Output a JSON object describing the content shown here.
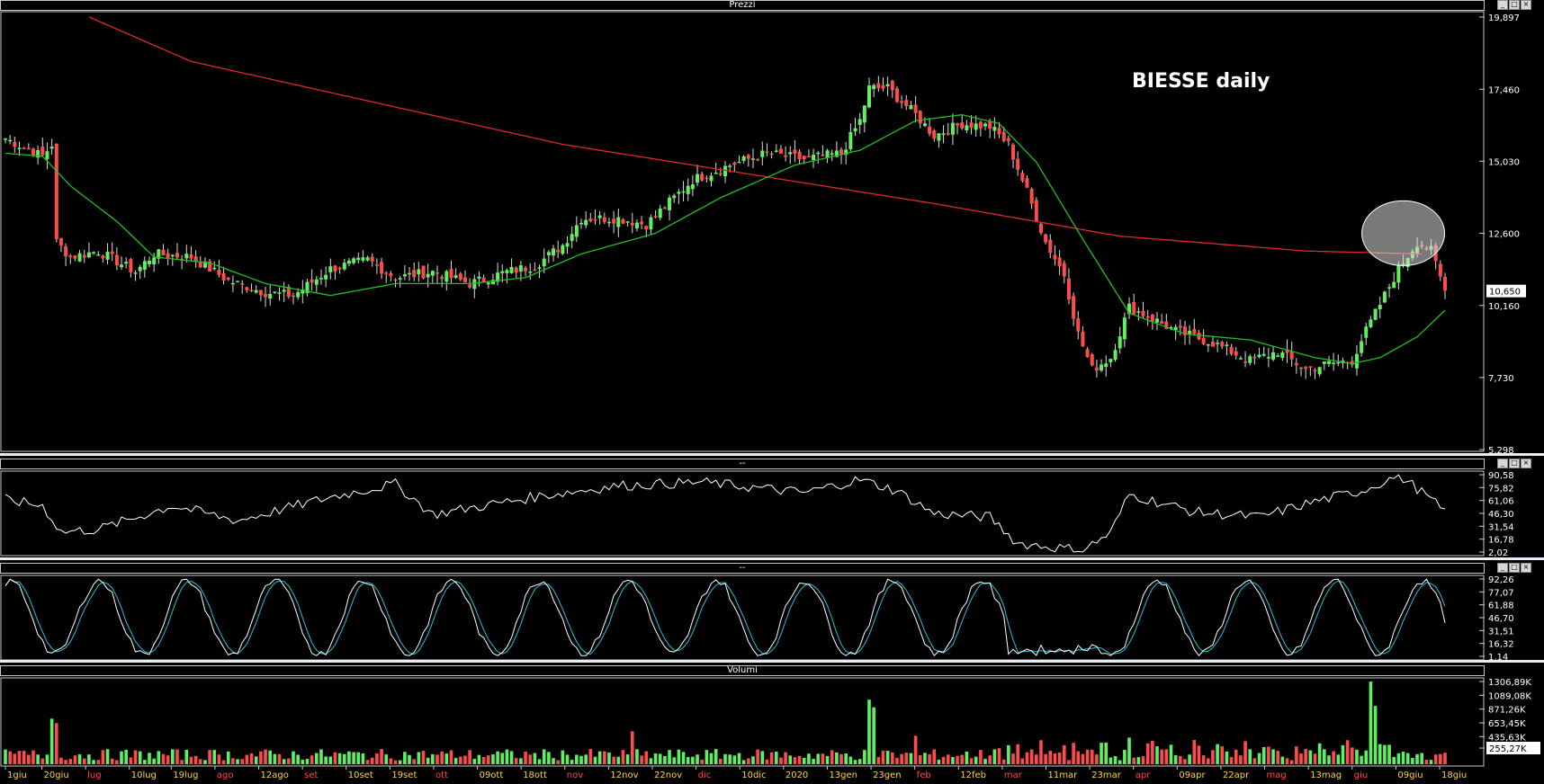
{
  "window": {
    "pane_titles": [
      "Prezzi",
      "--",
      "--",
      "Volumi"
    ],
    "button_glyphs": [
      "_",
      "□",
      "×"
    ]
  },
  "annotation": {
    "text": "BIESSE daily"
  },
  "chart_data": [
    {
      "type": "candlestick",
      "title": "Prezzi",
      "y_ticks": [
        "19,897",
        "17,460",
        "15,030",
        "12,600",
        "10,160",
        "7,730",
        "5,298"
      ],
      "ylim": [
        5.298,
        19.897
      ],
      "last_price_label": "10,650",
      "x_labels": [
        {
          "text": "1giu",
          "color": "#ffd24a"
        },
        {
          "text": "20giu",
          "color": "#ffd24a"
        },
        {
          "text": "lug",
          "color": "#ff4a4a"
        },
        {
          "text": "10lug",
          "color": "#ffd24a"
        },
        {
          "text": "19lug",
          "color": "#ffd24a"
        },
        {
          "text": "ago",
          "color": "#ff4a4a"
        },
        {
          "text": "12ago",
          "color": "#ffd24a"
        },
        {
          "text": "set",
          "color": "#ff4a4a"
        },
        {
          "text": "10set",
          "color": "#ffd24a"
        },
        {
          "text": "19set",
          "color": "#ffd24a"
        },
        {
          "text": "ott",
          "color": "#ff4a4a"
        },
        {
          "text": "09ott",
          "color": "#ffd24a"
        },
        {
          "text": "18ott",
          "color": "#ffd24a"
        },
        {
          "text": "nov",
          "color": "#ff4a4a"
        },
        {
          "text": "12nov",
          "color": "#ffd24a"
        },
        {
          "text": "22nov",
          "color": "#ffd24a"
        },
        {
          "text": "dic",
          "color": "#ff4a4a"
        },
        {
          "text": "10dic",
          "color": "#ffd24a"
        },
        {
          "text": "2020",
          "color": "#ffd24a"
        },
        {
          "text": "13gen",
          "color": "#ffd24a"
        },
        {
          "text": "23gen",
          "color": "#ffd24a"
        },
        {
          "text": "feb",
          "color": "#ff4a4a"
        },
        {
          "text": "12feb",
          "color": "#ffd24a"
        },
        {
          "text": "mar",
          "color": "#ff4a4a"
        },
        {
          "text": "11mar",
          "color": "#ffd24a"
        },
        {
          "text": "23mar",
          "color": "#ffd24a"
        },
        {
          "text": "apr",
          "color": "#ff4a4a"
        },
        {
          "text": "09apr",
          "color": "#ffd24a"
        },
        {
          "text": "22apr",
          "color": "#ffd24a"
        },
        {
          "text": "mag",
          "color": "#ff4a4a"
        },
        {
          "text": "13mag",
          "color": "#ffd24a"
        },
        {
          "text": "giu",
          "color": "#ff4a4a"
        },
        {
          "text": "09giu",
          "color": "#ffd24a"
        },
        {
          "text": "18giu",
          "color": "#ffd24a"
        }
      ],
      "close_keypoints": [
        [
          0,
          15.8
        ],
        [
          8,
          15.2
        ],
        [
          10,
          15.6
        ],
        [
          11,
          12.3
        ],
        [
          14,
          11.8
        ],
        [
          20,
          12.0
        ],
        [
          28,
          11.3
        ],
        [
          32,
          11.9
        ],
        [
          40,
          11.8
        ],
        [
          48,
          11.0
        ],
        [
          56,
          10.6
        ],
        [
          62,
          10.5
        ],
        [
          70,
          11.4
        ],
        [
          78,
          11.7
        ],
        [
          84,
          11.1
        ],
        [
          92,
          11.3
        ],
        [
          100,
          10.9
        ],
        [
          108,
          11.3
        ],
        [
          114,
          11.5
        ],
        [
          120,
          12.2
        ],
        [
          124,
          13.1
        ],
        [
          132,
          13.1
        ],
        [
          138,
          12.9
        ],
        [
          142,
          13.5
        ],
        [
          148,
          14.4
        ],
        [
          156,
          14.9
        ],
        [
          164,
          15.3
        ],
        [
          172,
          15.1
        ],
        [
          180,
          15.3
        ],
        [
          184,
          16.4
        ],
        [
          186,
          17.5
        ],
        [
          190,
          17.5
        ],
        [
          196,
          16.6
        ],
        [
          200,
          15.9
        ],
        [
          206,
          16.3
        ],
        [
          212,
          16.2
        ],
        [
          216,
          15.6
        ],
        [
          220,
          14.0
        ],
        [
          224,
          12.3
        ],
        [
          228,
          11.2
        ],
        [
          231,
          9.2
        ],
        [
          234,
          8.0
        ],
        [
          238,
          8.4
        ],
        [
          242,
          10.1
        ],
        [
          246,
          9.8
        ],
        [
          252,
          9.3
        ],
        [
          260,
          8.9
        ],
        [
          268,
          8.3
        ],
        [
          274,
          8.6
        ],
        [
          280,
          8.0
        ],
        [
          285,
          8.2
        ],
        [
          290,
          8.3
        ],
        [
          292,
          9.0
        ],
        [
          296,
          10.2
        ],
        [
          300,
          11.4
        ],
        [
          304,
          12.3
        ],
        [
          307,
          12.0
        ],
        [
          309,
          11.1
        ],
        [
          310,
          10.65
        ]
      ],
      "sma_short_keypoints": [
        [
          0,
          15.3
        ],
        [
          8,
          15.2
        ],
        [
          14,
          14.2
        ],
        [
          24,
          13.0
        ],
        [
          32,
          11.8
        ],
        [
          44,
          11.6
        ],
        [
          56,
          10.9
        ],
        [
          70,
          10.5
        ],
        [
          84,
          10.9
        ],
        [
          100,
          10.9
        ],
        [
          112,
          11.1
        ],
        [
          124,
          11.9
        ],
        [
          140,
          12.6
        ],
        [
          154,
          13.8
        ],
        [
          170,
          14.9
        ],
        [
          184,
          15.4
        ],
        [
          196,
          16.4
        ],
        [
          206,
          16.6
        ],
        [
          214,
          16.3
        ],
        [
          222,
          15.0
        ],
        [
          232,
          12.4
        ],
        [
          242,
          9.9
        ],
        [
          254,
          9.2
        ],
        [
          268,
          9.0
        ],
        [
          282,
          8.4
        ],
        [
          290,
          8.2
        ],
        [
          296,
          8.4
        ],
        [
          304,
          9.1
        ],
        [
          310,
          10.0
        ]
      ],
      "sma_long_keypoints": [
        [
          18,
          19.9
        ],
        [
          40,
          18.4
        ],
        [
          80,
          17.0
        ],
        [
          120,
          15.6
        ],
        [
          160,
          14.6
        ],
        [
          200,
          13.6
        ],
        [
          240,
          12.5
        ],
        [
          280,
          12.0
        ],
        [
          305,
          11.9
        ]
      ],
      "highlight": {
        "x_index": 301,
        "y_value": 12.6,
        "shape": "ellipse"
      },
      "colors": {
        "up": "#5ff05f",
        "down": "#ff4b4b",
        "sma_short": "#20c020",
        "sma_long": "#e02828"
      }
    },
    {
      "type": "line",
      "title": "--",
      "y_ticks": [
        "90,58",
        "75,82",
        "61,06",
        "46,30",
        "31,54",
        "16,78",
        "2,02"
      ],
      "ylim": [
        2.02,
        90.58
      ],
      "keypoints": [
        [
          0,
          62
        ],
        [
          8,
          55
        ],
        [
          12,
          25
        ],
        [
          20,
          28
        ],
        [
          36,
          55
        ],
        [
          50,
          38
        ],
        [
          70,
          65
        ],
        [
          84,
          80
        ],
        [
          92,
          45
        ],
        [
          116,
          67
        ],
        [
          132,
          78
        ],
        [
          150,
          82
        ],
        [
          172,
          70
        ],
        [
          184,
          85
        ],
        [
          192,
          72
        ],
        [
          200,
          46
        ],
        [
          212,
          42
        ],
        [
          218,
          12
        ],
        [
          232,
          4
        ],
        [
          238,
          24
        ],
        [
          242,
          68
        ],
        [
          256,
          48
        ],
        [
          270,
          42
        ],
        [
          282,
          60
        ],
        [
          292,
          72
        ],
        [
          300,
          90
        ],
        [
          304,
          75
        ],
        [
          310,
          48
        ]
      ],
      "color": "#ffffff"
    },
    {
      "type": "line",
      "title": "--",
      "y_ticks": [
        "92,26",
        "77,07",
        "61,88",
        "46,70",
        "31,51",
        "16,32",
        "1,14"
      ],
      "ylim": [
        1.14,
        92.26
      ],
      "period": 19,
      "series_colors": [
        "#ffffff",
        "#20c0e0"
      ]
    },
    {
      "type": "bar",
      "title": "Volumi",
      "y_ticks": [
        "1306,89K",
        "1089,08K",
        "871,26K",
        "653,45K",
        "435,63K",
        "255,27K"
      ],
      "ylim": [
        0,
        1306.89
      ],
      "unit": "K",
      "last_volume_label": "255,27K",
      "spikes": [
        [
          10,
          720
        ],
        [
          11,
          650
        ],
        [
          186,
          1020
        ],
        [
          187,
          900
        ],
        [
          294,
          1306
        ],
        [
          295,
          920
        ],
        [
          135,
          520
        ],
        [
          196,
          450
        ],
        [
          242,
          420
        ]
      ],
      "colors": {
        "up": "#5ff05f",
        "down": "#ff4b4b"
      }
    }
  ]
}
